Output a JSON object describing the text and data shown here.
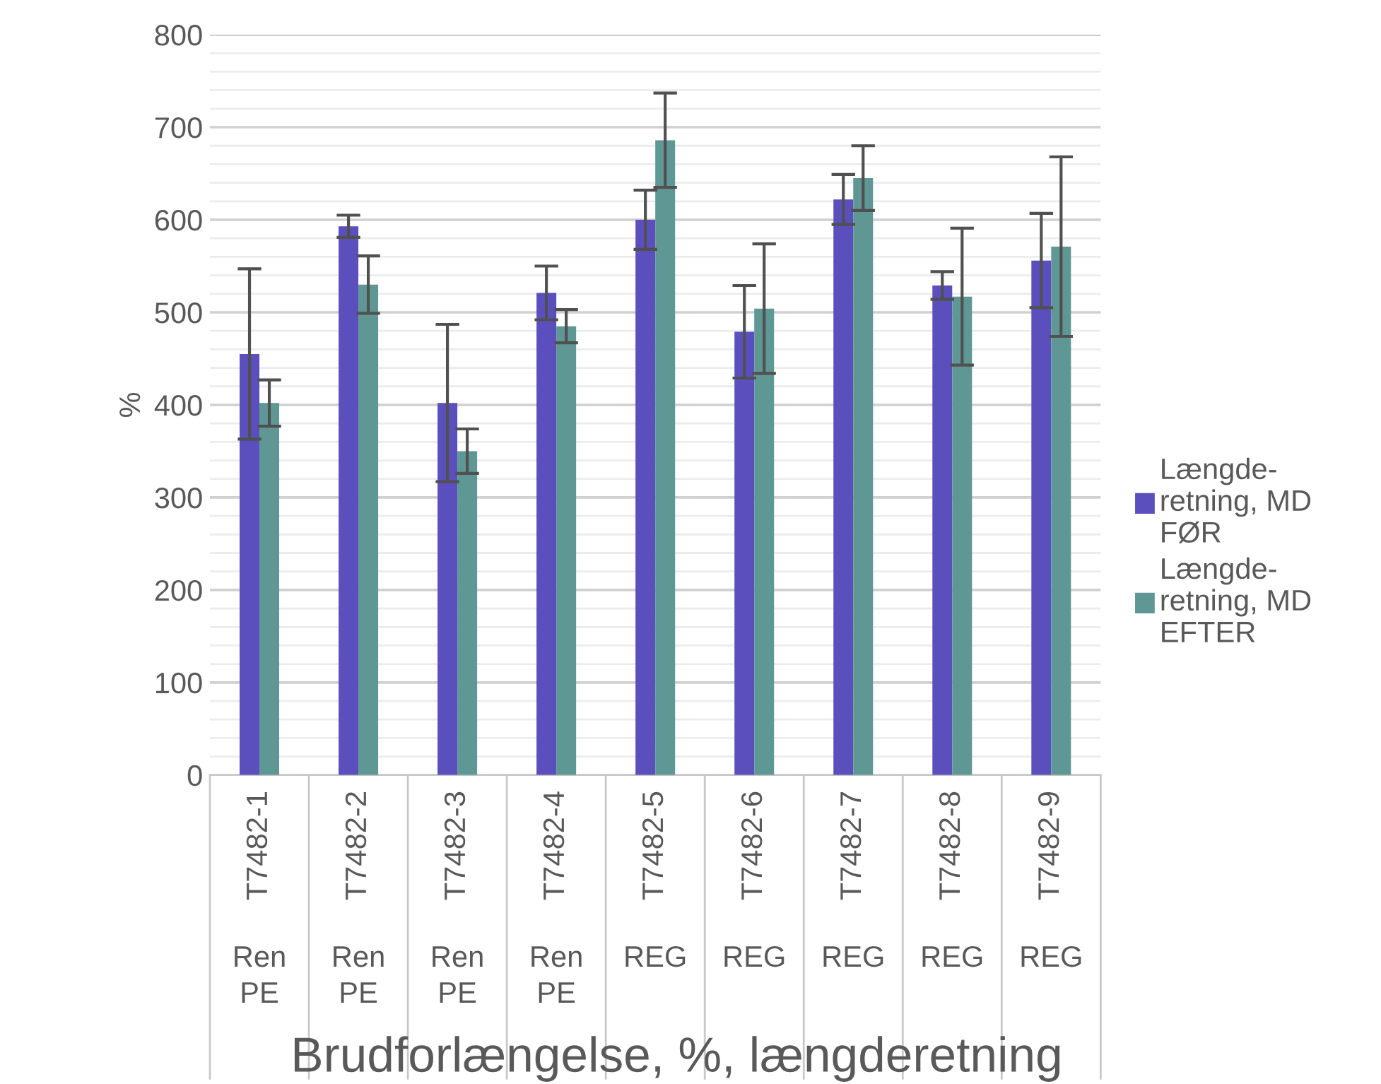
{
  "chart_data": {
    "type": "bar",
    "title": "Brudforlængelse, %, længderetning",
    "ylabel": "%",
    "categories": [
      "T7482-1",
      "T7482-2",
      "T7482-3",
      "T7482-4",
      "T7482-5",
      "T7482-6",
      "T7482-7",
      "T7482-8",
      "T7482-9"
    ],
    "annotations": [
      "Ren PE",
      "Ren PE",
      "Ren PE",
      "Ren PE",
      "REG",
      "REG",
      "REG",
      "REG",
      "REG"
    ],
    "series": [
      {
        "name": "Længde-retning, MD FØR",
        "color": "#5b4fbe",
        "values": [
          455,
          593,
          402,
          521,
          600,
          479,
          622,
          529,
          556
        ],
        "errors": [
          92,
          12,
          85,
          29,
          32,
          50,
          27,
          15,
          51
        ]
      },
      {
        "name": "Længde-retning, MD EFTER",
        "color": "#5f9794",
        "values": [
          402,
          530,
          350,
          485,
          686,
          504,
          645,
          517,
          571
        ],
        "errors": [
          25,
          31,
          24,
          18,
          51,
          70,
          35,
          74,
          97
        ]
      }
    ],
    "ylim": [
      0,
      800
    ],
    "yticks": [
      0,
      {
        "value": 20,
        "label": null
      },
      {
        "value": 40,
        "label": null
      },
      {
        "value": 60,
        "label": null
      },
      {
        "value": 80,
        "label": null
      },
      100,
      {
        "value": 120,
        "label": null
      },
      {
        "value": 140,
        "label": null
      },
      {
        "value": 160,
        "label": null
      },
      {
        "value": 180,
        "label": null
      },
      200,
      {
        "value": 220,
        "label": null
      },
      {
        "value": 240,
        "label": null
      },
      {
        "value": 260,
        "label": null
      },
      {
        "value": 280,
        "label": null
      },
      300,
      {
        "value": 320,
        "label": null
      },
      {
        "value": 340,
        "label": null
      },
      {
        "value": 360,
        "label": null
      },
      {
        "value": 380,
        "label": null
      },
      400,
      {
        "value": 420,
        "label": null
      },
      {
        "value": 440,
        "label": null
      },
      {
        "value": 460,
        "label": null
      },
      {
        "value": 480,
        "label": null
      },
      500,
      {
        "value": 520,
        "label": null
      },
      {
        "value": 540,
        "label": null
      },
      {
        "value": 560,
        "label": null
      },
      {
        "value": 580,
        "label": null
      },
      600,
      {
        "value": 620,
        "label": null
      },
      {
        "value": 640,
        "label": null
      },
      {
        "value": 660,
        "label": null
      },
      {
        "value": 680,
        "label": null
      },
      700,
      {
        "value": 720,
        "label": null
      },
      {
        "value": 740,
        "label": null
      },
      {
        "value": 760,
        "label": null
      },
      {
        "value": 780,
        "label": null
      },
      800
    ],
    "grid": "y",
    "legend": "right"
  }
}
